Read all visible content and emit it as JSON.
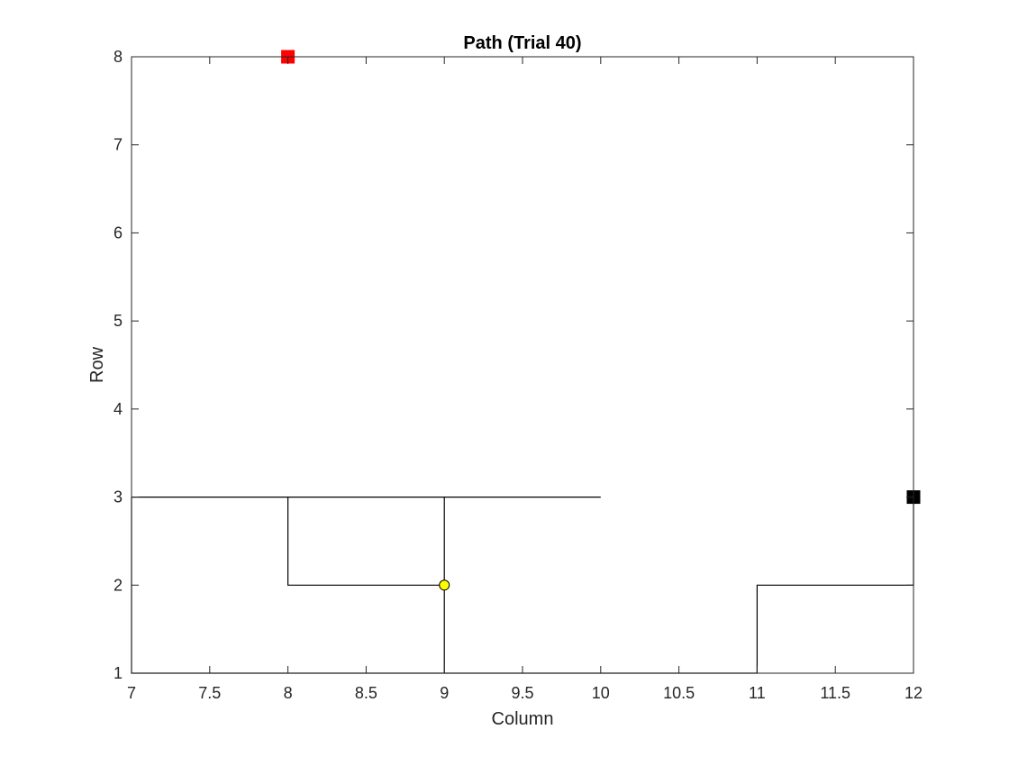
{
  "chart_data": {
    "type": "line",
    "title": "Path (Trial 40)",
    "xlabel": "Column",
    "ylabel": "Row",
    "xlim": [
      7,
      12
    ],
    "ylim": [
      1,
      8
    ],
    "xticks": [
      7,
      7.5,
      8,
      8.5,
      9,
      9.5,
      10,
      10.5,
      11,
      11.5,
      12
    ],
    "xtick_labels": [
      "7",
      "7.5",
      "8",
      "8.5",
      "9",
      "9.5",
      "10",
      "10.5",
      "11",
      "11.5",
      "12"
    ],
    "yticks": [
      1,
      2,
      3,
      4,
      5,
      6,
      7,
      8
    ],
    "ytick_labels": [
      "1",
      "2",
      "3",
      "4",
      "5",
      "6",
      "7",
      "8"
    ],
    "grid": false,
    "box": true,
    "path": {
      "color": "#000000",
      "x": [
        12,
        12,
        11,
        11,
        9,
        9,
        8,
        8,
        7,
        7,
        10,
        9,
        9,
        7,
        7,
        9,
        9,
        11,
        11,
        12,
        12
      ],
      "y": [
        3,
        2,
        2,
        1,
        1,
        2,
        2,
        3,
        3,
        3,
        3,
        3,
        1,
        1,
        3,
        3,
        1,
        1,
        2,
        2,
        3
      ]
    },
    "markers": [
      {
        "x": 8,
        "y": 8,
        "shape": "square",
        "color": "#ff0000"
      },
      {
        "x": 12,
        "y": 3,
        "shape": "square",
        "color": "#000000"
      },
      {
        "x": 9,
        "y": 2,
        "shape": "circle",
        "color": "#ffff00"
      }
    ]
  }
}
